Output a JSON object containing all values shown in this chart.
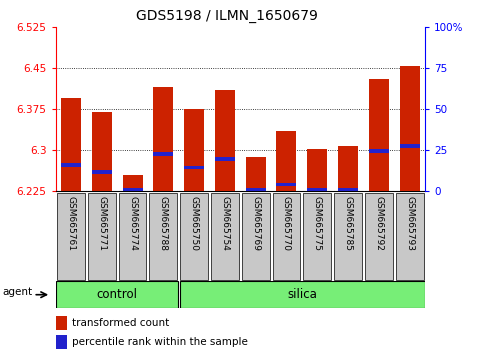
{
  "title": "GDS5198 / ILMN_1650679",
  "samples": [
    "GSM665761",
    "GSM665771",
    "GSM665774",
    "GSM665788",
    "GSM665750",
    "GSM665754",
    "GSM665769",
    "GSM665770",
    "GSM665775",
    "GSM665785",
    "GSM665792",
    "GSM665793"
  ],
  "red_values": [
    6.395,
    6.37,
    6.255,
    6.415,
    6.375,
    6.41,
    6.287,
    6.335,
    6.302,
    6.308,
    6.43,
    6.453
  ],
  "blue_values": [
    6.272,
    6.26,
    6.228,
    6.293,
    6.268,
    6.283,
    6.228,
    6.237,
    6.228,
    6.228,
    6.298,
    6.307
  ],
  "y_min": 6.225,
  "y_max": 6.525,
  "y_ticks": [
    6.225,
    6.3,
    6.375,
    6.45,
    6.525
  ],
  "right_y_ticks": [
    0,
    25,
    50,
    75,
    100
  ],
  "right_y_labels": [
    "0",
    "25",
    "50",
    "75",
    "100%"
  ],
  "bar_color": "#cc2200",
  "blue_color": "#2222cc",
  "bar_width": 0.65,
  "control_count": 4,
  "silica_count": 8,
  "legend_items": [
    "transformed count",
    "percentile rank within the sample"
  ]
}
